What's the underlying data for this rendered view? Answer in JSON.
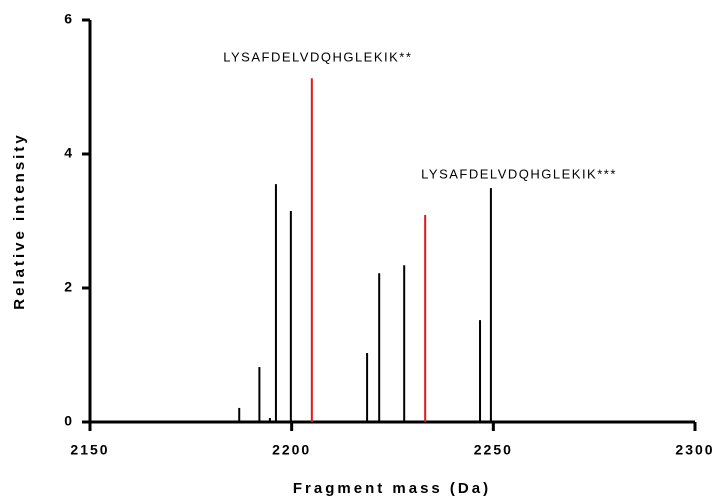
{
  "chart_data": {
    "type": "stick",
    "xlabel": "Fragment mass (Da)",
    "ylabel": "Relative intensity",
    "series": [
      {
        "color": "#000000",
        "x": [
          2187,
          2192,
          2194.6,
          2196.1,
          2199.8,
          2218.7,
          2221.7,
          2227.9,
          2246.7,
          2249.4
        ],
        "values": [
          0.21,
          0.82,
          0.06,
          3.55,
          3.15,
          1.03,
          2.22,
          2.34,
          1.52,
          3.49
        ]
      },
      {
        "color": "#e8161b",
        "x": [
          2205,
          2233.1
        ],
        "values": [
          5.13,
          3.09
        ]
      }
    ],
    "annotations": [
      "LYSAFDELVDQHGLEKIK**",
      "LYSAFDELVDQHGLEKIK***"
    ],
    "xlim": [
      2150,
      2300
    ],
    "xticks": [
      2150,
      2200,
      2250,
      2300
    ],
    "ylim": [
      0,
      6
    ],
    "yticks": [
      0,
      2,
      4,
      6
    ]
  }
}
